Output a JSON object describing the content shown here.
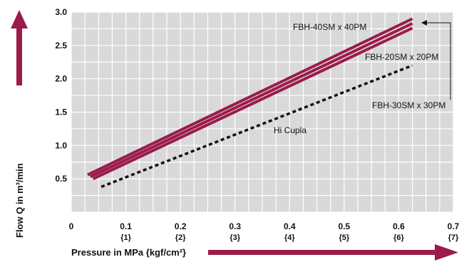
{
  "chart_data": {
    "type": "line",
    "xlabel": "Pressure in MPa {kgf/cm²}",
    "ylabel": "Flow Q in m³/min",
    "xlim": [
      0,
      0.7
    ],
    "ylim": [
      0,
      3.0
    ],
    "x_ticks": [
      {
        "mpa": "0",
        "kgf": ""
      },
      {
        "mpa": "0.1",
        "kgf": "{1}"
      },
      {
        "mpa": "0.2",
        "kgf": "{2}"
      },
      {
        "mpa": "0.3",
        "kgf": "{3}"
      },
      {
        "mpa": "0.4",
        "kgf": "{4}"
      },
      {
        "mpa": "0.5",
        "kgf": "{5}"
      },
      {
        "mpa": "0.6",
        "kgf": "{6}"
      },
      {
        "mpa": "0.7",
        "kgf": "{7}"
      }
    ],
    "y_ticks": [
      "0.5",
      "1.0",
      "1.5",
      "2.0",
      "2.5",
      "3.0"
    ],
    "grid": true,
    "series": [
      {
        "name": "FBH-40SM x 40PM",
        "x": [
          0.03,
          0.625
        ],
        "y": [
          0.56,
          2.9
        ],
        "color": "#9b1b4b",
        "style": "solid"
      },
      {
        "name": "FBH-20SM x 20PM",
        "x": [
          0.035,
          0.625
        ],
        "y": [
          0.53,
          2.83
        ],
        "color": "#9b1b4b",
        "style": "solid"
      },
      {
        "name": "FBH-30SM x 30PM",
        "x": [
          0.04,
          0.625
        ],
        "y": [
          0.5,
          2.76
        ],
        "color": "#9b1b4b",
        "style": "solid"
      },
      {
        "name": "Hi Cupla",
        "x": [
          0.055,
          0.625
        ],
        "y": [
          0.38,
          2.2
        ],
        "color": "#111111",
        "style": "dashed"
      }
    ]
  }
}
